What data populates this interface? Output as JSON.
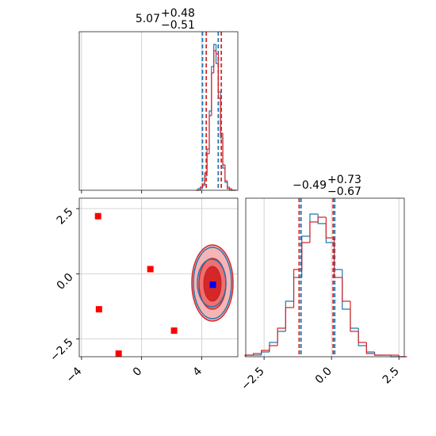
{
  "chart_data": [
    {
      "type": "histogram",
      "title": "5.07",
      "title_sup": "+0.48",
      "title_sub": "−0.51",
      "bins": [
        3.6,
        3.75,
        3.9,
        4.05,
        4.2,
        4.35,
        4.5,
        4.65,
        4.8,
        4.95,
        5.1,
        5.25,
        5.4,
        5.55,
        5.7,
        5.85,
        6.0,
        6.15,
        6.3
      ],
      "series": [
        {
          "color": "#1f77b4",
          "values": [
            0,
            1,
            1,
            3,
            9,
            26,
            50,
            78,
            92,
            80,
            62,
            33,
            14,
            5,
            2,
            0,
            0,
            0
          ],
          "quantiles": [
            4.05,
            5.1
          ]
        },
        {
          "color": "#d62728",
          "values": [
            0,
            0,
            2,
            4,
            11,
            23,
            47,
            74,
            88,
            86,
            58,
            36,
            16,
            6,
            1,
            1,
            0,
            0
          ],
          "quantiles": [
            4.3,
            5.3
          ]
        }
      ],
      "xlim": [
        -4.15,
        6.4
      ],
      "xticks": [
        {
          "value": -4,
          "label": "−4"
        },
        0,
        4
      ],
      "ylim": [
        0,
        100
      ],
      "grid": true
    },
    {
      "type": "scatter",
      "x": [
        -2.9,
        -2.84,
        0.58,
        2.16,
        -1.53
      ],
      "y": [
        2.21,
        -1.36,
        0.18,
        -2.18,
        -3.06
      ],
      "color": "#ff0000",
      "highlight": {
        "x": 4.74,
        "y": -0.42,
        "color": "#0000ff"
      },
      "xlim": [
        -4.15,
        6.4
      ],
      "xticks": [
        {
          "value": -4,
          "label": "−4"
        },
        0,
        4
      ],
      "ylim": [
        -3.18,
        2.9
      ],
      "yticks": [
        {
          "value": -2.5,
          "label": "−2.5"
        },
        {
          "value": 0,
          "label": "0.0"
        },
        2.5
      ],
      "grid": true
    },
    {
      "type": "histogram",
      "title": "−0.49",
      "title_sup": "+0.73",
      "title_sub": "−0.67",
      "bins": [
        -3.2,
        -2.9,
        -2.6,
        -2.3,
        -2.0,
        -1.7,
        -1.4,
        -1.1,
        -0.8,
        -0.5,
        -0.2,
        0.1,
        0.4,
        0.7,
        1.0,
        1.3,
        1.6,
        1.9,
        2.2,
        2.5,
        2.8
      ],
      "series": [
        {
          "color": "#1f77b4",
          "values": [
            1,
            1,
            3,
            9,
            16,
            35,
            50,
            76,
            90,
            84,
            72,
            55,
            30,
            18,
            7,
            3,
            1,
            1,
            0,
            0
          ],
          "quantiles": [
            -1.13,
            0.12
          ]
        },
        {
          "color": "#d62728",
          "values": [
            1,
            2,
            4,
            7,
            18,
            31,
            55,
            72,
            85,
            88,
            75,
            50,
            35,
            16,
            9,
            2,
            1,
            1,
            1,
            0
          ],
          "quantiles": [
            -1.2,
            0.06
          ]
        }
      ],
      "xlim": [
        -3.18,
        2.7
      ],
      "xticks": [
        {
          "value": -2.5,
          "label": "−2.5"
        },
        {
          "value": 0,
          "label": "0.0"
        },
        2.5
      ],
      "ylim": [
        0,
        100
      ],
      "grid": true
    }
  ]
}
